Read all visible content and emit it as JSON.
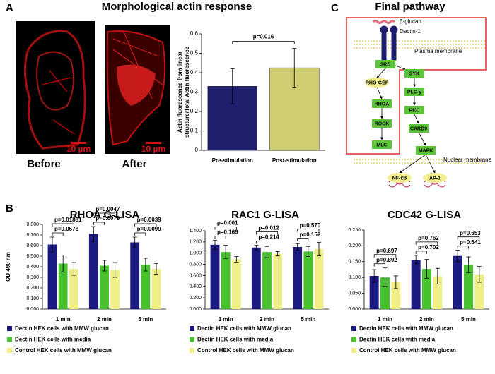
{
  "panel_labels": [
    "A",
    "B",
    "C"
  ],
  "panel_a": {
    "title": "Morphological actin response",
    "images": [
      {
        "caption": "Before",
        "scale": "10 µm"
      },
      {
        "caption": "After",
        "scale": "10 µm"
      }
    ]
  },
  "chart_data": [
    {
      "type": "bar",
      "ylabel": [
        "Actin fluorescence from linear",
        "structure/Total Actin fluorescence"
      ],
      "categories": [
        "Pre-stimulation",
        "Post-stimulation"
      ],
      "values": [
        0.33,
        0.425
      ],
      "errors": [
        0.09,
        0.1
      ],
      "colors": [
        "#1f1f6e",
        "#cfcd72"
      ],
      "ylim": [
        0,
        0.6
      ],
      "yticks": [
        0,
        0.1,
        0.2,
        0.3,
        0.4,
        0.5,
        0.6
      ],
      "annotations": [
        "p=0.016"
      ]
    },
    {
      "type": "bar",
      "title": "RHOA G-LISA",
      "ylabel": "OD 490 nm",
      "categories": [
        "1 min",
        "2 min",
        "5 min"
      ],
      "series": [
        {
          "name": "Dectin HEK cells with MMW glucan",
          "color": "#1a1a80",
          "values": [
            0.61,
            0.71,
            0.63
          ],
          "errors": [
            0.07,
            0.07,
            0.05
          ]
        },
        {
          "name": "Dectin HEK cells with media",
          "color": "#47c22e",
          "values": [
            0.43,
            0.41,
            0.42
          ],
          "errors": [
            0.08,
            0.05,
            0.06
          ]
        },
        {
          "name": "Control HEK cells with MMW glucan",
          "color": "#f0ee88",
          "values": [
            0.38,
            0.37,
            0.38
          ],
          "errors": [
            0.06,
            0.07,
            0.05
          ]
        }
      ],
      "ylim": [
        0,
        0.8
      ],
      "yticks": [
        {
          "value": 0,
          "label": "0.000"
        },
        {
          "value": 0.1,
          "label": "0.100"
        },
        {
          "value": 0.2,
          "label": "0.200"
        },
        {
          "value": 0.3,
          "label": "0.300"
        },
        {
          "value": 0.4,
          "label": "0.400"
        },
        {
          "value": 0.5,
          "label": "0.500"
        },
        {
          "value": 0.6,
          "label": "0.600"
        },
        {
          "value": 0.7,
          "label": "0.700"
        },
        {
          "value": 0.8,
          "label": "0.800"
        }
      ],
      "annotations": [
        "p=0.01881",
        "p=0.0578",
        "p=0.0047",
        "p=0.0079",
        "p=0.0039",
        "p=0.0099"
      ]
    },
    {
      "type": "bar",
      "title": "RAC1 G-LISA",
      "categories": [
        "1 min",
        "2 min",
        "5 min"
      ],
      "series": [
        {
          "name": "Dectin HEK cells with MMW glucan",
          "color": "#1a1a80",
          "values": [
            1.15,
            1.1,
            1.11
          ],
          "errors": [
            0.08,
            0.04,
            0.06
          ]
        },
        {
          "name": "Dectin HEK cells with media",
          "color": "#47c22e",
          "values": [
            1.02,
            1.02,
            1.03
          ],
          "errors": [
            0.12,
            0.1,
            0.09
          ]
        },
        {
          "name": "Control HEK cells with MMW glucan",
          "color": "#f0ee88",
          "values": [
            0.89,
            0.99,
            1.07
          ],
          "errors": [
            0.05,
            0.04,
            0.12
          ]
        }
      ],
      "ylim": [
        0,
        1.4
      ],
      "yticks": [
        {
          "value": 0,
          "label": "0.000"
        },
        {
          "value": 0.2,
          "label": "0.200"
        },
        {
          "value": 0.4,
          "label": "0.400"
        },
        {
          "value": 0.6,
          "label": "0.600"
        },
        {
          "value": 0.8,
          "label": "0.800"
        },
        {
          "value": 1,
          "label": "1.000"
        },
        {
          "value": 1.2,
          "label": "1.200"
        },
        {
          "value": 1.4,
          "label": "1.400"
        }
      ],
      "annotations": [
        "p=0.001",
        "p=0.169",
        "p=0.012",
        "p=0.214",
        "p=0.570",
        "p=0.152"
      ]
    },
    {
      "type": "bar",
      "title": "CDC42 G-LISA",
      "categories": [
        "1 min",
        "2 min",
        "5 min"
      ],
      "series": [
        {
          "name": "Dectin HEK cells with MMW glucan",
          "color": "#1a1a80",
          "values": [
            0.105,
            0.155,
            0.168
          ],
          "errors": [
            0.02,
            0.015,
            0.018
          ]
        },
        {
          "name": "Dectin HEK cells with media",
          "color": "#47c22e",
          "values": [
            0.1,
            0.127,
            0.14
          ],
          "errors": [
            0.03,
            0.03,
            0.025
          ]
        },
        {
          "name": "Control HEK cells with MMW glucan",
          "color": "#f0ee88",
          "values": [
            0.085,
            0.104,
            0.11
          ],
          "errors": [
            0.02,
            0.025,
            0.025
          ]
        }
      ],
      "ylim": [
        0,
        0.25
      ],
      "yticks": [
        {
          "value": 0,
          "label": "0.000"
        },
        {
          "value": 0.05,
          "label": "0.050"
        },
        {
          "value": 0.1,
          "label": "0.100"
        },
        {
          "value": 0.15,
          "label": "0.150"
        },
        {
          "value": 0.2,
          "label": "0.200"
        },
        {
          "value": 0.25,
          "label": "0.250"
        }
      ],
      "annotations": [
        "p=0.697",
        "p=0.892",
        "p=0.762",
        "p=0.702",
        "p=0.653",
        "p=0.641"
      ]
    }
  ],
  "pathway": {
    "title": "Final pathway",
    "ligand": "β-glucan",
    "receptor": "Dectin-1",
    "plasma_membrane": "Plasma membrane",
    "nuclear_membrane": "Nuclear membrane",
    "nodes": [
      "SRC",
      "RHO-GEF",
      "RHOA",
      "ROCK",
      "MLC",
      "SYK",
      "PLC-γ",
      "PKC",
      "CARD9",
      "MAPK",
      "NF-κB",
      "AP-1"
    ]
  }
}
